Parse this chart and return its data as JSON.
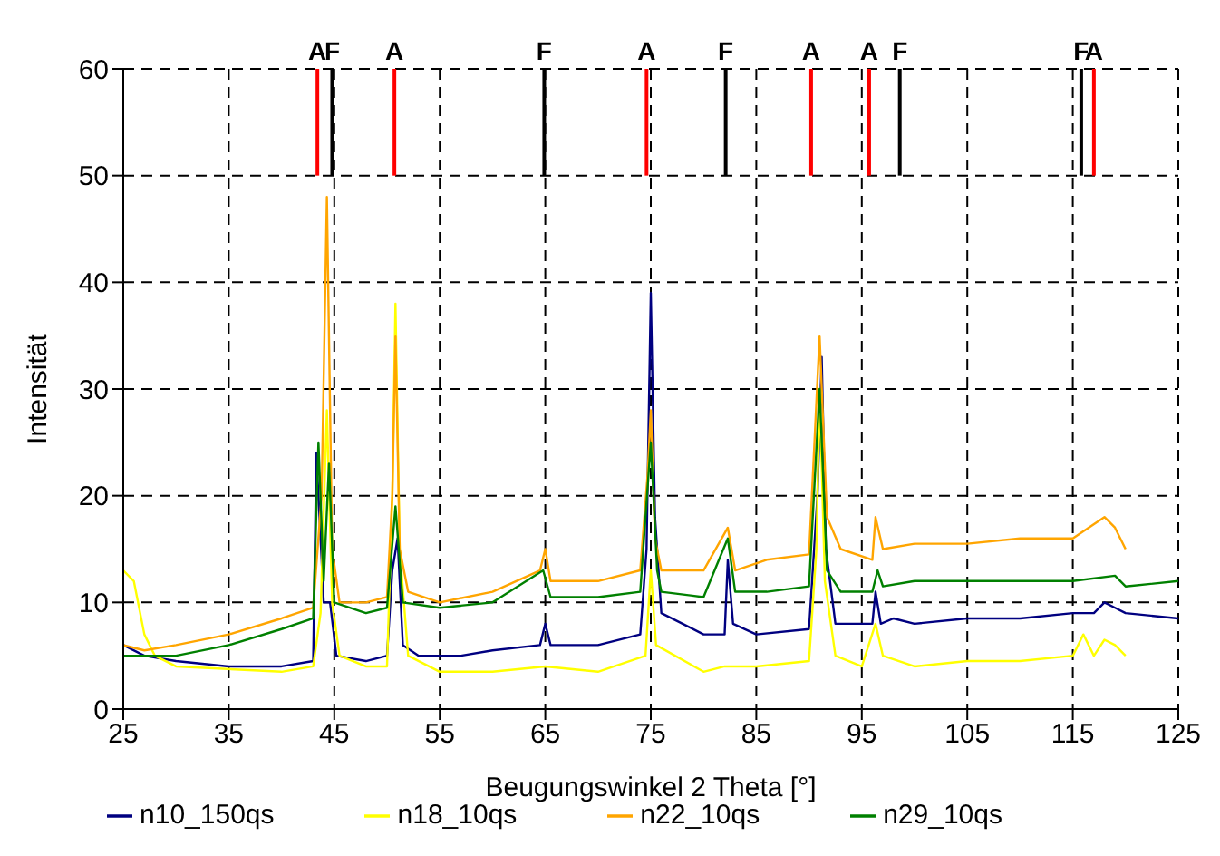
{
  "chart_data": {
    "type": "line",
    "xlabel": "Beugungswinkel 2 Theta [°]",
    "ylabel": "Intensität",
    "xlim": [
      25,
      125
    ],
    "ylim": [
      0,
      60
    ],
    "xticks": [
      25,
      35,
      45,
      55,
      65,
      75,
      85,
      95,
      105,
      115,
      125
    ],
    "yticks": [
      0,
      10,
      20,
      30,
      40,
      50,
      60
    ],
    "grid": true,
    "legend": "bottom",
    "marker": "none",
    "line_style": "solid",
    "series": [
      {
        "name": "n10_150qs",
        "color": "#000080",
        "x": [
          25,
          27,
          30,
          35,
          40,
          43,
          43.3,
          44,
          44.6,
          45.2,
          48,
          50,
          50.5,
          51,
          51.5,
          53,
          57,
          60,
          64.5,
          65,
          65.5,
          70,
          74,
          74.6,
          75,
          75.4,
          76,
          80,
          82,
          82.3,
          82.8,
          85,
          90,
          90.8,
          91.2,
          91.6,
          92.5,
          96,
          96.3,
          96.8,
          98,
          100,
          105,
          110,
          115,
          117,
          118,
          119,
          120,
          125
        ],
        "values": [
          6,
          5,
          4.5,
          4,
          4,
          4.5,
          24,
          10,
          10,
          5,
          4.5,
          5,
          13,
          16,
          6,
          5,
          5,
          5.5,
          6,
          8,
          6,
          6,
          7,
          15,
          39,
          18,
          9,
          7,
          7,
          14,
          8,
          7,
          7.5,
          20,
          33,
          15,
          8,
          8,
          11,
          8,
          8.5,
          8,
          8.5,
          8.5,
          9,
          9,
          10,
          9.5,
          9,
          8.5
        ]
      },
      {
        "name": "n18_10qs",
        "color": "#ffff00",
        "x": [
          25,
          26,
          27,
          28,
          30,
          40,
          43,
          43.7,
          44.3,
          44.8,
          45.5,
          48,
          50,
          50.5,
          50.8,
          51.2,
          52,
          55,
          60,
          65,
          70,
          74.5,
          75,
          75.5,
          80,
          82,
          85,
          90,
          90.7,
          91,
          91.5,
          92.5,
          95,
          96.3,
          97,
          100,
          105,
          110,
          115,
          116,
          117,
          118,
          119,
          120
        ],
        "values": [
          13,
          12,
          7,
          5,
          4,
          3.5,
          4,
          9,
          28,
          10,
          5,
          4,
          4,
          20,
          38,
          15,
          5,
          3.5,
          3.5,
          4,
          3.5,
          5,
          13,
          6,
          3.5,
          4,
          4,
          4.5,
          15,
          30,
          12,
          5,
          4,
          8,
          5,
          4,
          4.5,
          4.5,
          5,
          7,
          5,
          6.5,
          6,
          5
        ]
      },
      {
        "name": "n22_10qs",
        "color": "#ffa500",
        "x": [
          25,
          27,
          30,
          35,
          40,
          43,
          43.8,
          44.3,
          44.8,
          45.5,
          48,
          50,
          50.5,
          50.8,
          51.2,
          52,
          55,
          60,
          64.5,
          65,
          65.5,
          70,
          74,
          74.7,
          75,
          75.4,
          76,
          80,
          82.3,
          83,
          86,
          90,
          91,
          91.7,
          93,
          96,
          96.3,
          97,
          100,
          105,
          110,
          115,
          118,
          119,
          120
        ],
        "values": [
          6,
          5.5,
          6,
          7,
          8.5,
          9.5,
          20,
          48,
          15,
          10,
          10,
          10.5,
          20,
          35,
          15,
          11,
          10,
          11,
          13,
          15,
          12,
          12,
          13,
          22,
          28,
          16,
          13,
          13,
          17,
          13,
          14,
          14.5,
          35,
          18,
          15,
          14,
          18,
          15,
          15.5,
          15.5,
          16,
          16,
          18,
          17,
          15
        ]
      },
      {
        "name": "n29_10qs",
        "color": "#008000",
        "x": [
          25,
          30,
          35,
          40,
          43,
          43.5,
          44,
          44.5,
          45,
          48,
          50,
          50.8,
          51.5,
          55,
          60,
          64.8,
          65.5,
          70,
          74,
          75,
          75.6,
          76,
          80,
          82.3,
          83,
          86,
          90,
          91,
          91.7,
          93,
          96,
          96.5,
          97,
          100,
          105,
          110,
          115,
          119,
          120,
          125
        ],
        "values": [
          5,
          5,
          6,
          7.5,
          8.5,
          25,
          12,
          23,
          10,
          9,
          9.5,
          19,
          10,
          9.5,
          10,
          13,
          10.5,
          10.5,
          11,
          25,
          13,
          11,
          10.5,
          16,
          11,
          11,
          11.5,
          30,
          13,
          11,
          11,
          13,
          11.5,
          12,
          12,
          12,
          12,
          12.5,
          11.5,
          12
        ]
      }
    ],
    "ref_lines": [
      {
        "axis": "x",
        "value": 43.4,
        "label": "A",
        "color": "#ff0000"
      },
      {
        "axis": "x",
        "value": 44.8,
        "label": "F",
        "color": "#000000"
      },
      {
        "axis": "x",
        "value": 50.7,
        "label": "A",
        "color": "#ff0000"
      },
      {
        "axis": "x",
        "value": 64.9,
        "label": "F",
        "color": "#000000"
      },
      {
        "axis": "x",
        "value": 74.6,
        "label": "A",
        "color": "#ff0000"
      },
      {
        "axis": "x",
        "value": 82.1,
        "label": "F",
        "color": "#000000"
      },
      {
        "axis": "x",
        "value": 90.2,
        "label": "A",
        "color": "#ff0000"
      },
      {
        "axis": "x",
        "value": 95.7,
        "label": "A",
        "color": "#ff0000"
      },
      {
        "axis": "x",
        "value": 98.6,
        "label": "F",
        "color": "#000000"
      },
      {
        "axis": "x",
        "value": 115.8,
        "label": "F",
        "color": "#000000"
      },
      {
        "axis": "x",
        "value": 117.0,
        "label": "A",
        "color": "#ff0000"
      }
    ]
  }
}
